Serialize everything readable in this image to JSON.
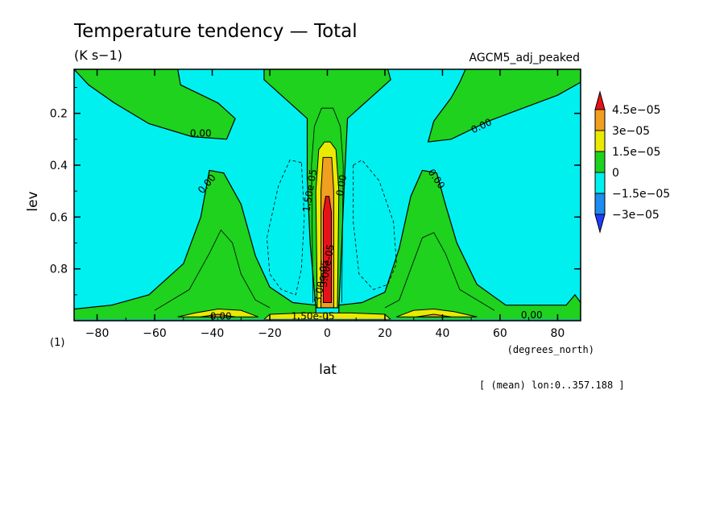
{
  "chart_data": {
    "type": "heatmap",
    "title": "Temperature tendency — Total",
    "subtitle": "(K s−1)",
    "experiment": "AGCM5_adj_peaked",
    "xlabel": "lat",
    "x_units": "(degrees_north)",
    "ylabel": "lev",
    "y_units": "(1)",
    "footnote": "[ (mean) lon:0..357.188 ]",
    "xlim": [
      -88,
      88
    ],
    "ylim": [
      1.0,
      0.03
    ],
    "x_ticks": [
      -80,
      -60,
      -40,
      -20,
      0,
      20,
      40,
      60,
      80
    ],
    "x_tick_labels": [
      "−80",
      "−60",
      "−40",
      "−20",
      "0",
      "20",
      "40",
      "60",
      "80"
    ],
    "y_ticks": [
      0.2,
      0.4,
      0.6,
      0.8
    ],
    "y_tick_labels": [
      "0.2",
      "0.4",
      "0.6",
      "0.8"
    ],
    "colorbar": {
      "labels": [
        "4.5e−05",
        "3e−05",
        "1.5e−05",
        "0",
        "−1.5e−05",
        "−3e−05"
      ],
      "colors": [
        "#e8111a",
        "#f0a01e",
        "#eaea00",
        "#1ed21e",
        "#00f0f0",
        "#1e8cf0",
        "#1e3cff"
      ]
    },
    "contour_labels": [
      {
        "text": "0.00",
        "lat": -44,
        "lev": 0.29
      },
      {
        "text": "0.00",
        "lat": 54,
        "lev": 0.26
      },
      {
        "text": "0.00",
        "lat": -41,
        "lev": 0.48
      },
      {
        "text": "0.00",
        "lat": 37,
        "lev": 0.46
      },
      {
        "text": "0.00",
        "lat": 6,
        "lev": 0.48
      },
      {
        "text": "1.50e-05",
        "lat": -5,
        "lev": 0.5
      },
      {
        "text": "3.00e-05",
        "lat": 1,
        "lev": 0.79
      },
      {
        "text": "3.00e-05",
        "lat": -1,
        "lev": 0.85
      },
      {
        "text": "1.50e-05",
        "lat": -5,
        "lev": 0.995
      },
      {
        "text": "0.00",
        "lat": -37,
        "lev": 0.995
      },
      {
        "text": "0.00",
        "lat": 71,
        "lev": 0.99
      }
    ]
  },
  "colors": {
    "negative": "#00f0f0",
    "zero_band": "#1ed21e",
    "positive_1": "#eaea00",
    "positive_2": "#f0a01e",
    "positive_3": "#e8111a",
    "strong_negative": "#1e8cf0"
  }
}
